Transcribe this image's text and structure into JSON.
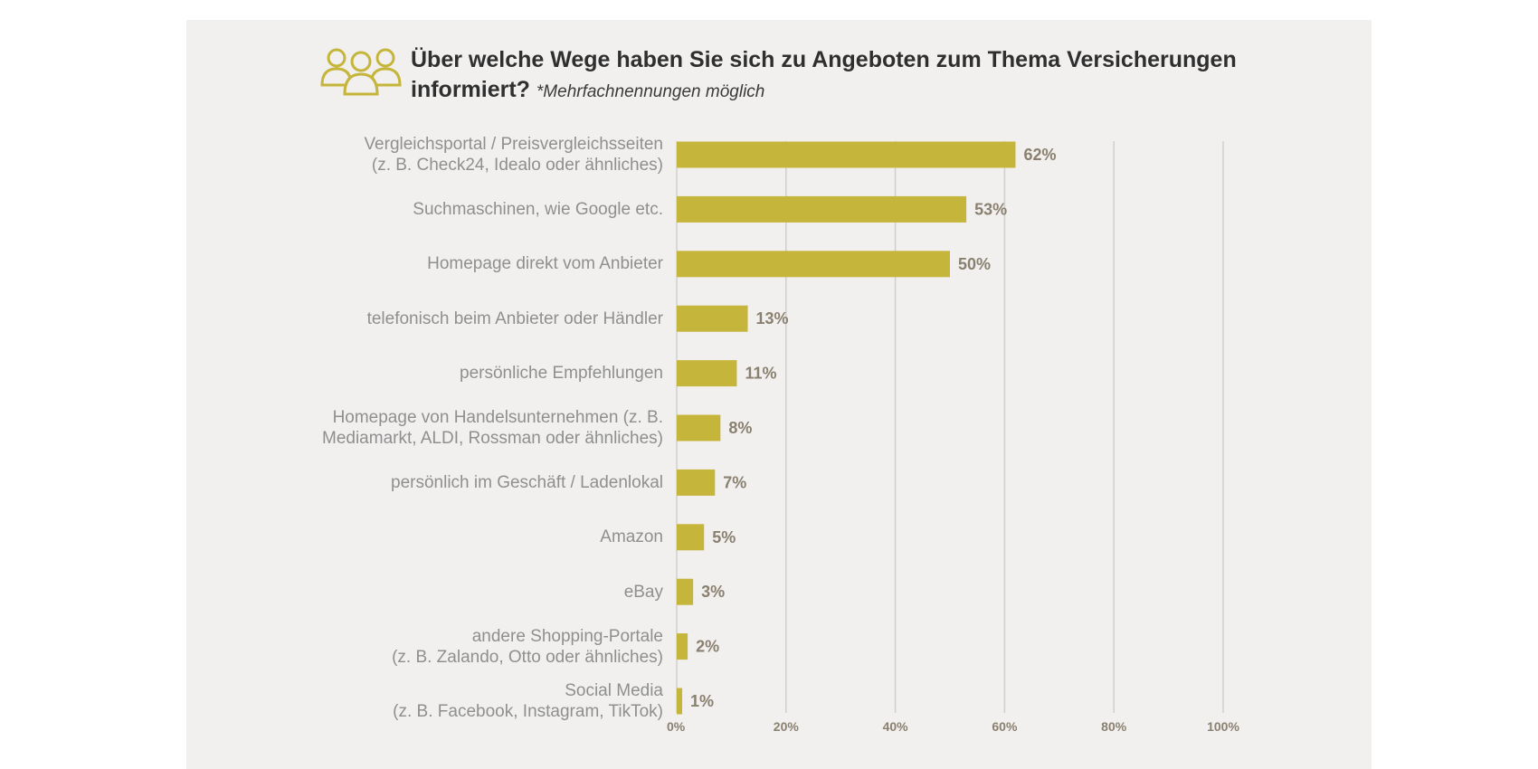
{
  "title": "Über welche Wege haben Sie sich zu Angeboten zum Thema Versicherungen informiert?",
  "subtitle": "*Mehrfachnennungen möglich",
  "colors": {
    "bar": "#c5b53a",
    "icon": "#c5b53a",
    "label": "#8f8f8f",
    "value_label": "#8a8070",
    "grid": "#cfcfcf",
    "panel": "#f1f0ef"
  },
  "icon": "people-group-icon",
  "chart_data": {
    "type": "bar",
    "orientation": "horizontal",
    "title": "Über welche Wege haben Sie sich zu Angeboten zum Thema Versicherungen informiert?",
    "subtitle": "*Mehrfachnennungen möglich",
    "categories": [
      [
        "Vergleichsportal / Preisvergleichsseiten",
        "(z. B. Check24, Idealo oder ähnliches)"
      ],
      [
        "Suchmaschinen, wie Google etc."
      ],
      [
        "Homepage direkt vom Anbieter"
      ],
      [
        "telefonisch beim Anbieter oder Händler"
      ],
      [
        "persönliche Empfehlungen"
      ],
      [
        "Homepage von Handelsunternehmen (z. B.",
        "Mediamarkt, ALDI, Rossman oder ähnliches)"
      ],
      [
        "persönlich im Geschäft / Ladenlokal"
      ],
      [
        "Amazon"
      ],
      [
        "eBay"
      ],
      [
        "andere Shopping-Portale",
        "(z. B. Zalando, Otto oder ähnliches)"
      ],
      [
        "Social Media",
        "(z. B. Facebook, Instagram, TikTok)"
      ]
    ],
    "values": [
      62,
      53,
      50,
      13,
      11,
      8,
      7,
      5,
      3,
      2,
      1
    ],
    "value_labels": [
      "62%",
      "53%",
      "50%",
      "13%",
      "11%",
      "8%",
      "7%",
      "5%",
      "3%",
      "2%",
      "1%"
    ],
    "xlim": [
      0,
      100
    ],
    "xticks": [
      0,
      20,
      40,
      60,
      80,
      100
    ],
    "xtick_labels": [
      "0%",
      "20%",
      "40%",
      "60%",
      "80%",
      "100%"
    ],
    "grid": true,
    "xlabel": "",
    "ylabel": ""
  }
}
